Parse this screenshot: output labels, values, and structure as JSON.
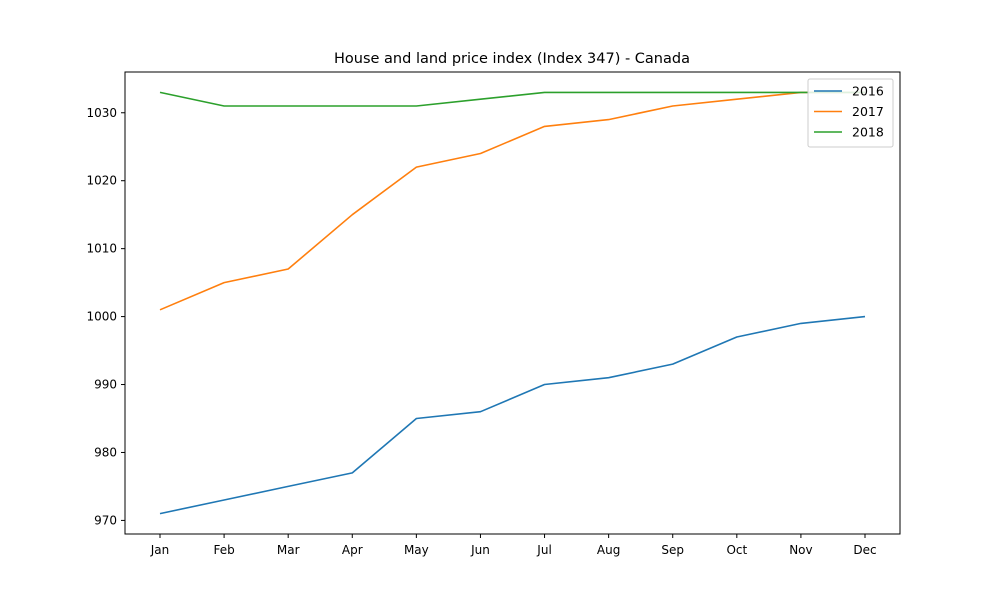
{
  "chart_data": {
    "type": "line",
    "title": "House and land price index (Index 347) - Canada",
    "xlabel": "",
    "ylabel": "",
    "categories": [
      "Jan",
      "Feb",
      "Mar",
      "Apr",
      "May",
      "Jun",
      "Jul",
      "Aug",
      "Sep",
      "Oct",
      "Nov",
      "Dec"
    ],
    "yticks": [
      970,
      980,
      990,
      1000,
      1010,
      1020,
      1030
    ],
    "ylim": [
      968,
      1036
    ],
    "grid": false,
    "legend_position": "top-right",
    "series": [
      {
        "name": "2016",
        "color": "#1f77b4",
        "values": [
          971,
          973,
          975,
          977,
          985,
          986,
          990,
          991,
          993,
          997,
          999,
          1000
        ]
      },
      {
        "name": "2017",
        "color": "#ff7f0e",
        "values": [
          1001,
          1005,
          1007,
          1015,
          1022,
          1024,
          1028,
          1029,
          1031,
          1032,
          1033,
          1033
        ]
      },
      {
        "name": "2018",
        "color": "#2ca02c",
        "values": [
          1033,
          1031,
          1031,
          1031,
          1031,
          1032,
          1033,
          1033,
          1033,
          1033,
          1033,
          1033
        ]
      }
    ]
  }
}
